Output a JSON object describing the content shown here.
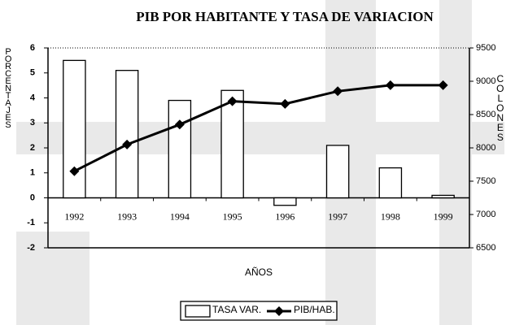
{
  "chart_data": {
    "type": "bar",
    "title": "PIB POR HABITANTE Y TASA DE VARIACION",
    "ylabel": "PORCENTAJES",
    "y2label": "COLONES",
    "xlabel": "AÑOS",
    "categories": [
      "1992",
      "1993",
      "1994",
      "1995",
      "1996",
      "1997",
      "1998",
      "1999"
    ],
    "series": [
      {
        "name": "TASA VAR.",
        "type": "bar",
        "color": "#ffffff",
        "values": [
          5.5,
          5.1,
          3.9,
          4.3,
          -0.3,
          2.1,
          1.2,
          0.1
        ]
      },
      {
        "name": "PIB/HAB.",
        "type": "line",
        "axis": "y2",
        "color": "#000000",
        "values": [
          7650,
          8050,
          8350,
          8700,
          8660,
          8850,
          8940,
          8940
        ]
      }
    ],
    "ylim": [
      -2,
      6
    ],
    "yticks": [
      -2,
      -1,
      0,
      1,
      2,
      3,
      4,
      5,
      6
    ],
    "y2lim": [
      6500,
      9500
    ],
    "y2ticks": [
      6500,
      7000,
      7500,
      8000,
      8500,
      9000,
      9500
    ],
    "legend": "bottom"
  }
}
